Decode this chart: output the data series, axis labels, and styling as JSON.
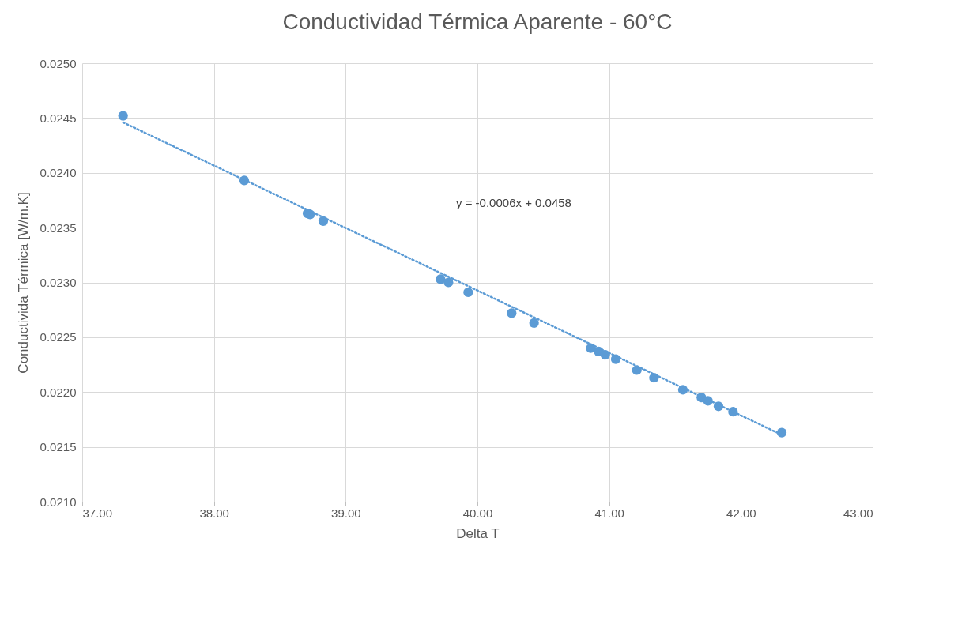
{
  "chart_data": {
    "type": "scatter",
    "title": "Conductividad Térmica Aparente - 60°C",
    "xlabel": "Delta T",
    "ylabel": "Conductivida Térmica [W/m.K]",
    "xlim": [
      37,
      43
    ],
    "xticks": [
      {
        "value": 37,
        "label": "37.00"
      },
      {
        "value": 38,
        "label": "38.00"
      },
      {
        "value": 39,
        "label": "39.00"
      },
      {
        "value": 40,
        "label": "40.00"
      },
      {
        "value": 41,
        "label": "41.00"
      },
      {
        "value": 42,
        "label": "42.00"
      },
      {
        "value": 43,
        "label": "43.00"
      }
    ],
    "ylim": [
      0.021,
      0.025
    ],
    "yticks": [
      {
        "value": 0.021,
        "label": "0.0210"
      },
      {
        "value": 0.0215,
        "label": "0.0215"
      },
      {
        "value": 0.022,
        "label": "0.0220"
      },
      {
        "value": 0.0225,
        "label": "0.0225"
      },
      {
        "value": 0.023,
        "label": "0.0230"
      },
      {
        "value": 0.0235,
        "label": "0.0235"
      },
      {
        "value": 0.024,
        "label": "0.0240"
      },
      {
        "value": 0.0245,
        "label": "0.0245"
      },
      {
        "value": 0.025,
        "label": "0.0250"
      }
    ],
    "grid": true,
    "x": [
      37.31,
      38.23,
      38.71,
      38.73,
      38.83,
      39.72,
      39.78,
      39.93,
      40.26,
      40.43,
      40.86,
      40.92,
      40.97,
      41.05,
      41.21,
      41.34,
      41.56,
      41.7,
      41.75,
      41.83,
      41.94,
      42.31
    ],
    "series": [
      {
        "marker": "circle",
        "color": "#5b9bd5",
        "values": [
          0.02452,
          0.02393,
          0.02363,
          0.02362,
          0.02356,
          0.02303,
          0.023,
          0.02291,
          0.02272,
          0.02263,
          0.0224,
          0.02237,
          0.02234,
          0.0223,
          0.0222,
          0.02213,
          0.02202,
          0.02195,
          0.02192,
          0.02187,
          0.02182,
          0.02163
        ]
      },
      {
        "type": "line",
        "marker": "none",
        "line_style": "dotted",
        "color": "#5b9bd5",
        "x": [
          37.31,
          42.31
        ],
        "values": [
          0.02446,
          0.02161
        ]
      }
    ],
    "annotations": [
      "y = -0.0006x + 0.0458"
    ]
  }
}
